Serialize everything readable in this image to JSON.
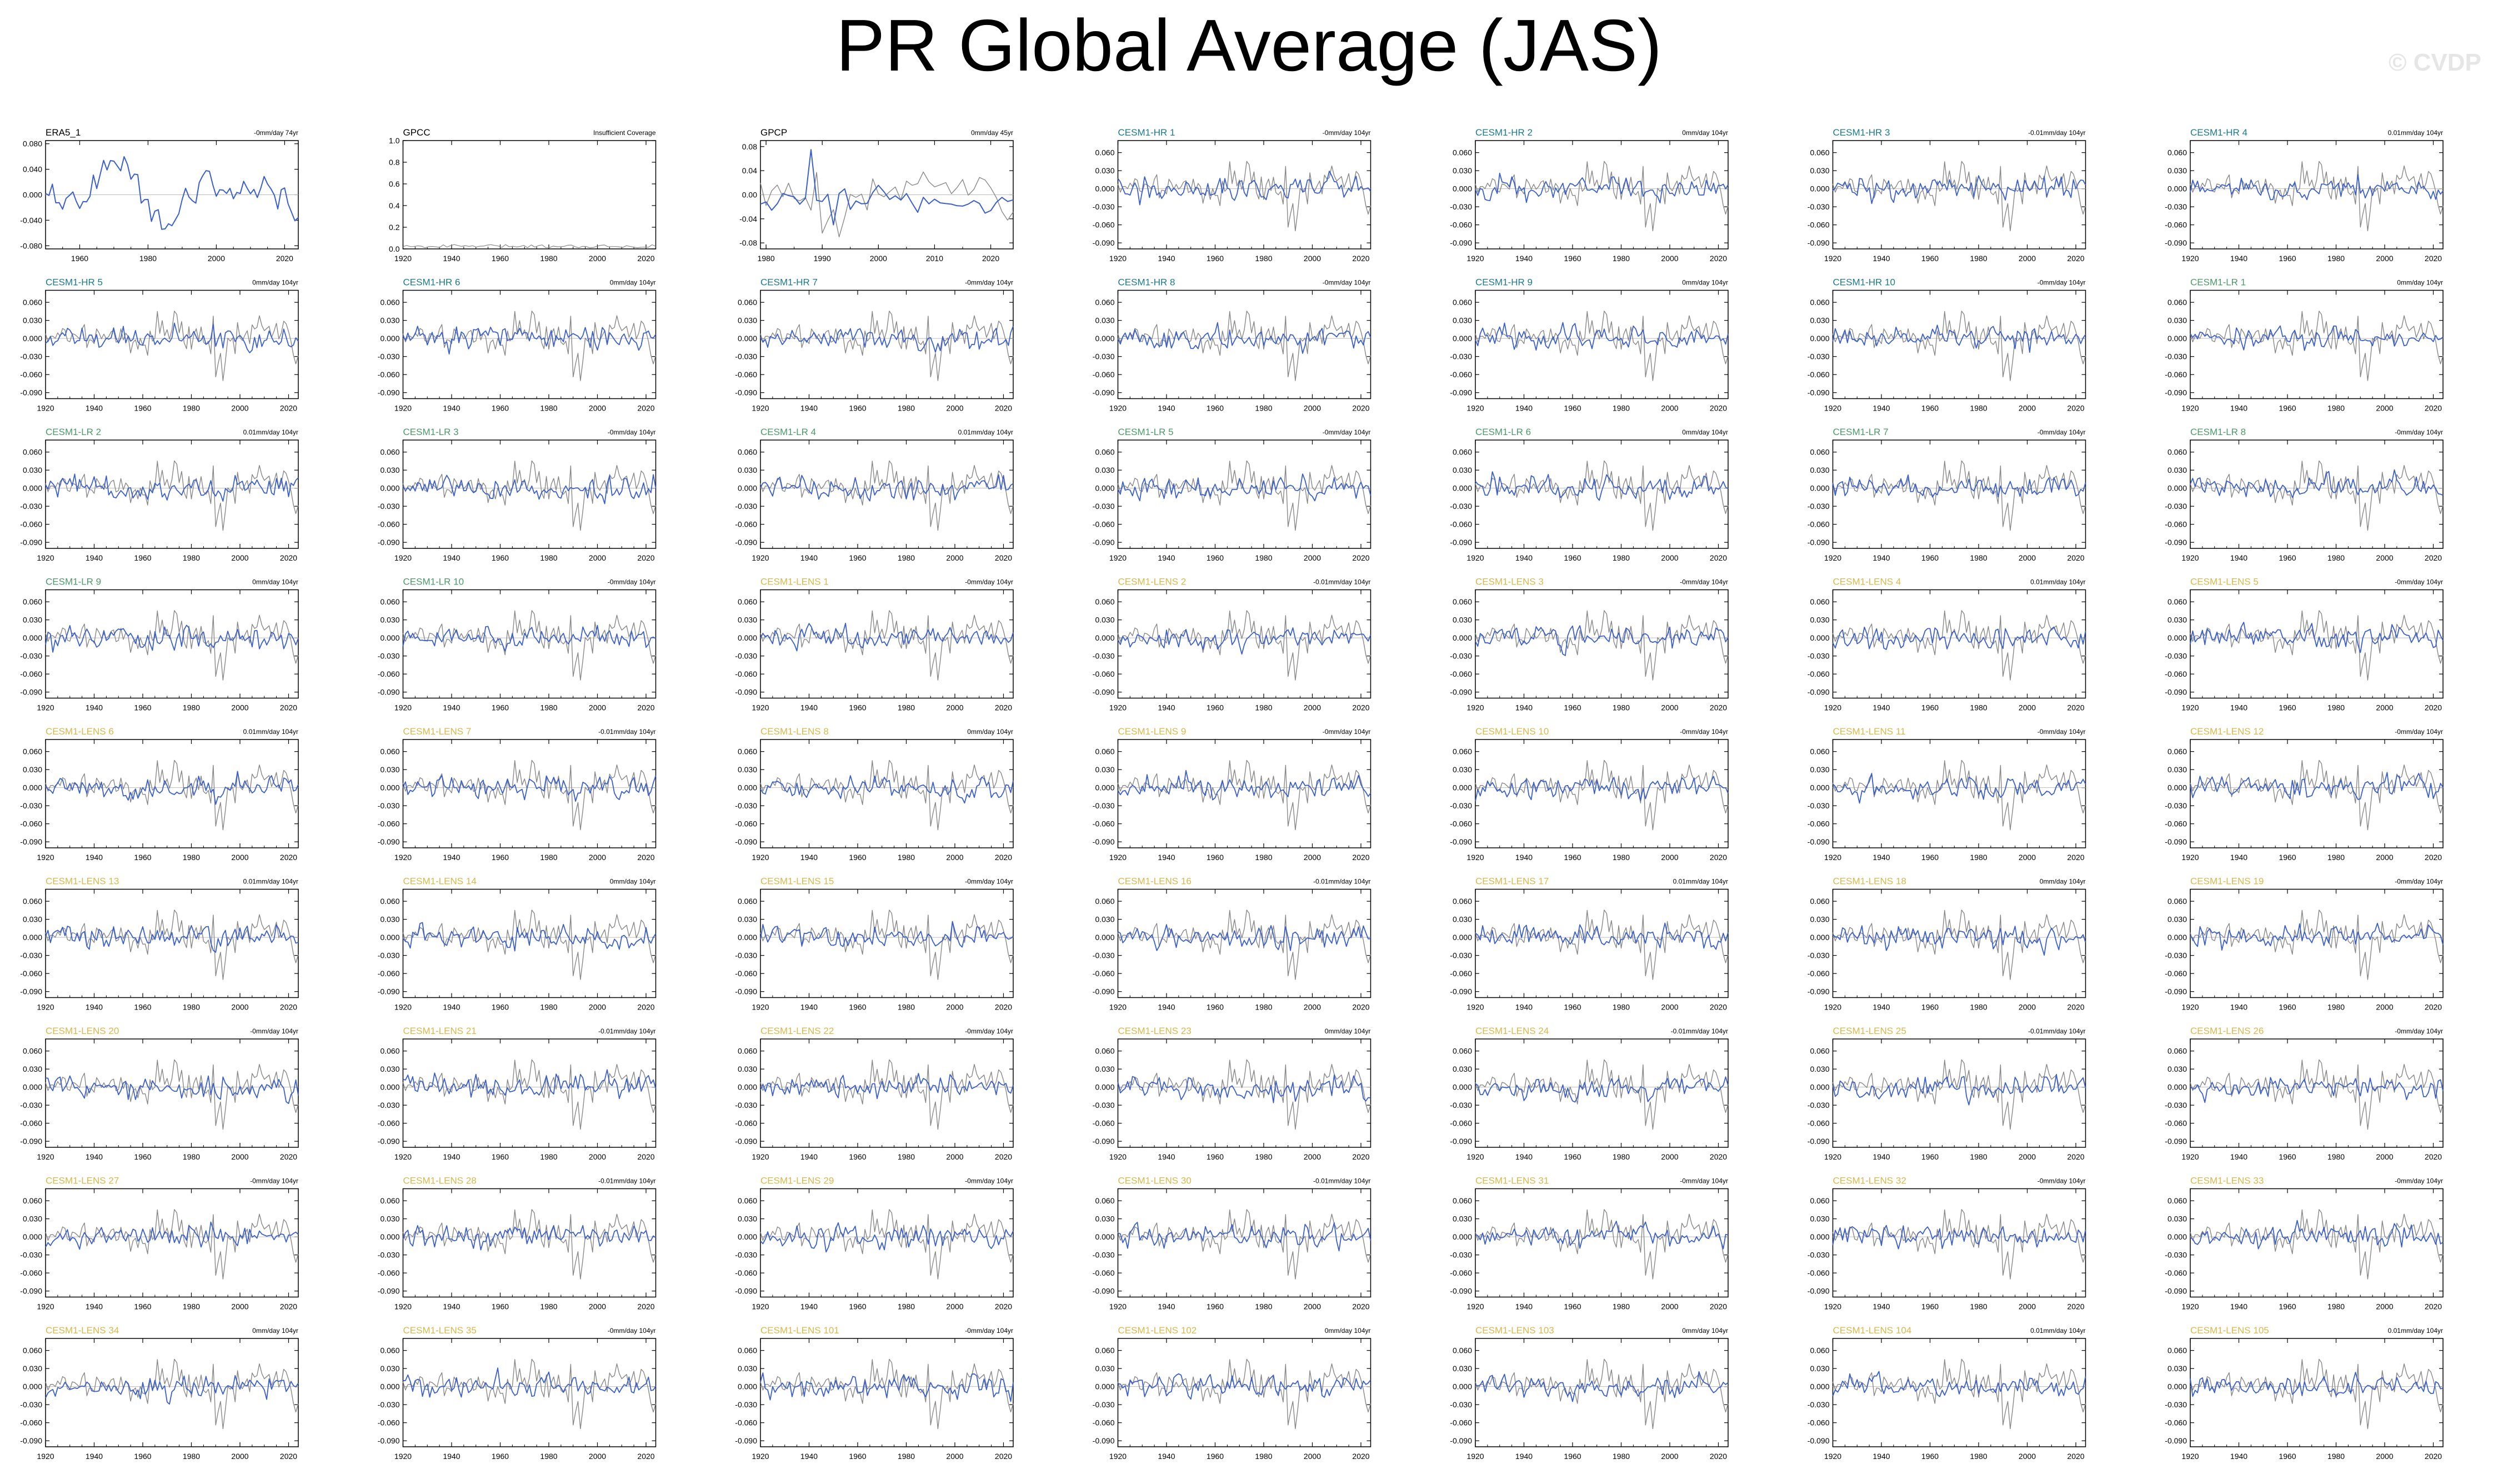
{
  "title": "PR Global Average (JAS)",
  "watermark": "© CVDP",
  "colors": {
    "observation_label": "#000000",
    "cesm1_hr_label": "#1a7a8c",
    "cesm1_lr_label": "#4a9a6a",
    "cesm1_lens_label": "#d9b84a",
    "model_series": "#3a5fcd",
    "reference_series": "#888888",
    "axis": "#000000"
  },
  "std_axis": {
    "yticks": [
      "0.060",
      "0.030",
      "0.000",
      "-0.030",
      "-0.060",
      "-0.090"
    ],
    "ylim": [
      -0.1,
      0.08
    ],
    "xticks": [
      "1920",
      "1940",
      "1960",
      "1980",
      "2000",
      "2020"
    ],
    "xlim": [
      1920,
      2024
    ]
  },
  "chart_data": [
    {
      "type": "line",
      "name": "ERA5_1",
      "trend": "-0mm/day 74yr",
      "group": "obs",
      "xlim": [
        1950,
        2024
      ],
      "ylim": [
        -0.085,
        0.085
      ],
      "yticks": [
        "0.080",
        "0.040",
        "0.000",
        "-0.040",
        "-0.080"
      ],
      "xticks": [
        "1960",
        "1980",
        "2000",
        "2020"
      ]
    },
    {
      "type": "line",
      "name": "GPCC",
      "trend": "Insufficient Coverage",
      "group": "obs",
      "gpcc": true,
      "xlim": [
        1920,
        2024
      ],
      "ylim": [
        0,
        1.0
      ],
      "yticks": [
        "1.0",
        "0.8",
        "0.6",
        "0.4",
        "0.2",
        "0.0"
      ],
      "xticks": [
        "1920",
        "1940",
        "1960",
        "1980",
        "2000",
        "2020"
      ]
    },
    {
      "type": "line",
      "name": "GPCP",
      "trend": "0mm/day 45yr",
      "group": "obs",
      "xlim": [
        1979,
        2024
      ],
      "ylim": [
        -0.09,
        0.09
      ],
      "yticks": [
        "0.08",
        "0.04",
        "0.00",
        "-0.04",
        "-0.08"
      ],
      "xticks": [
        "1980",
        "1990",
        "2000",
        "2010",
        "2020"
      ]
    },
    {
      "name": "CESM1-HR 1",
      "trend": "-0mm/day 104yr",
      "group": "hr"
    },
    {
      "name": "CESM1-HR 2",
      "trend": "0mm/day 104yr",
      "group": "hr"
    },
    {
      "name": "CESM1-HR 3",
      "trend": "-0.01mm/day 104yr",
      "group": "hr"
    },
    {
      "name": "CESM1-HR 4",
      "trend": "0.01mm/day 104yr",
      "group": "hr"
    },
    {
      "name": "CESM1-HR 5",
      "trend": "0mm/day 104yr",
      "group": "hr"
    },
    {
      "name": "CESM1-HR 6",
      "trend": "0mm/day 104yr",
      "group": "hr"
    },
    {
      "name": "CESM1-HR 7",
      "trend": "-0mm/day 104yr",
      "group": "hr"
    },
    {
      "name": "CESM1-HR 8",
      "trend": "-0mm/day 104yr",
      "group": "hr"
    },
    {
      "name": "CESM1-HR 9",
      "trend": "0mm/day 104yr",
      "group": "hr"
    },
    {
      "name": "CESM1-HR 10",
      "trend": "-0mm/day 104yr",
      "group": "hr"
    },
    {
      "name": "CESM1-LR 1",
      "trend": "0mm/day 104yr",
      "group": "lr"
    },
    {
      "name": "CESM1-LR 2",
      "trend": "0.01mm/day 104yr",
      "group": "lr"
    },
    {
      "name": "CESM1-LR 3",
      "trend": "-0mm/day 104yr",
      "group": "lr"
    },
    {
      "name": "CESM1-LR 4",
      "trend": "0.01mm/day 104yr",
      "group": "lr"
    },
    {
      "name": "CESM1-LR 5",
      "trend": "-0mm/day 104yr",
      "group": "lr"
    },
    {
      "name": "CESM1-LR 6",
      "trend": "0mm/day 104yr",
      "group": "lr"
    },
    {
      "name": "CESM1-LR 7",
      "trend": "-0mm/day 104yr",
      "group": "lr"
    },
    {
      "name": "CESM1-LR 8",
      "trend": "-0mm/day 104yr",
      "group": "lr"
    },
    {
      "name": "CESM1-LR 9",
      "trend": "0mm/day 104yr",
      "group": "lr"
    },
    {
      "name": "CESM1-LR 10",
      "trend": "-0mm/day 104yr",
      "group": "lr"
    },
    {
      "name": "CESM1-LENS 1",
      "trend": "-0mm/day 104yr",
      "group": "lens"
    },
    {
      "name": "CESM1-LENS 2",
      "trend": "-0.01mm/day 104yr",
      "group": "lens"
    },
    {
      "name": "CESM1-LENS 3",
      "trend": "-0mm/day 104yr",
      "group": "lens"
    },
    {
      "name": "CESM1-LENS 4",
      "trend": "0.01mm/day 104yr",
      "group": "lens"
    },
    {
      "name": "CESM1-LENS 5",
      "trend": "-0mm/day 104yr",
      "group": "lens"
    },
    {
      "name": "CESM1-LENS 6",
      "trend": "0.01mm/day 104yr",
      "group": "lens"
    },
    {
      "name": "CESM1-LENS 7",
      "trend": "-0.01mm/day 104yr",
      "group": "lens"
    },
    {
      "name": "CESM1-LENS 8",
      "trend": "0mm/day 104yr",
      "group": "lens"
    },
    {
      "name": "CESM1-LENS 9",
      "trend": "-0mm/day 104yr",
      "group": "lens"
    },
    {
      "name": "CESM1-LENS 10",
      "trend": "-0mm/day 104yr",
      "group": "lens"
    },
    {
      "name": "CESM1-LENS 11",
      "trend": "-0mm/day 104yr",
      "group": "lens"
    },
    {
      "name": "CESM1-LENS 12",
      "trend": "-0mm/day 104yr",
      "group": "lens"
    },
    {
      "name": "CESM1-LENS 13",
      "trend": "0.01mm/day 104yr",
      "group": "lens"
    },
    {
      "name": "CESM1-LENS 14",
      "trend": "0mm/day 104yr",
      "group": "lens"
    },
    {
      "name": "CESM1-LENS 15",
      "trend": "-0mm/day 104yr",
      "group": "lens"
    },
    {
      "name": "CESM1-LENS 16",
      "trend": "-0.01mm/day 104yr",
      "group": "lens"
    },
    {
      "name": "CESM1-LENS 17",
      "trend": "0.01mm/day 104yr",
      "group": "lens"
    },
    {
      "name": "CESM1-LENS 18",
      "trend": "0mm/day 104yr",
      "group": "lens"
    },
    {
      "name": "CESM1-LENS 19",
      "trend": "-0mm/day 104yr",
      "group": "lens"
    },
    {
      "name": "CESM1-LENS 20",
      "trend": "-0mm/day 104yr",
      "group": "lens"
    },
    {
      "name": "CESM1-LENS 21",
      "trend": "-0.01mm/day 104yr",
      "group": "lens"
    },
    {
      "name": "CESM1-LENS 22",
      "trend": "-0mm/day 104yr",
      "group": "lens"
    },
    {
      "name": "CESM1-LENS 23",
      "trend": "0mm/day 104yr",
      "group": "lens"
    },
    {
      "name": "CESM1-LENS 24",
      "trend": "-0.01mm/day 104yr",
      "group": "lens"
    },
    {
      "name": "CESM1-LENS 25",
      "trend": "-0.01mm/day 104yr",
      "group": "lens"
    },
    {
      "name": "CESM1-LENS 26",
      "trend": "-0mm/day 104yr",
      "group": "lens"
    },
    {
      "name": "CESM1-LENS 27",
      "trend": "-0mm/day 104yr",
      "group": "lens"
    },
    {
      "name": "CESM1-LENS 28",
      "trend": "-0.01mm/day 104yr",
      "group": "lens"
    },
    {
      "name": "CESM1-LENS 29",
      "trend": "-0mm/day 104yr",
      "group": "lens"
    },
    {
      "name": "CESM1-LENS 30",
      "trend": "-0.01mm/day 104yr",
      "group": "lens"
    },
    {
      "name": "CESM1-LENS 31",
      "trend": "-0mm/day 104yr",
      "group": "lens"
    },
    {
      "name": "CESM1-LENS 32",
      "trend": "-0mm/day 104yr",
      "group": "lens"
    },
    {
      "name": "CESM1-LENS 33",
      "trend": "-0mm/day 104yr",
      "group": "lens"
    },
    {
      "name": "CESM1-LENS 34",
      "trend": "0mm/day 104yr",
      "group": "lens"
    },
    {
      "name": "CESM1-LENS 35",
      "trend": "-0mm/day 104yr",
      "group": "lens"
    },
    {
      "name": "CESM1-LENS 101",
      "trend": "-0mm/day 104yr",
      "group": "lens"
    },
    {
      "name": "CESM1-LENS 102",
      "trend": "0mm/day 104yr",
      "group": "lens"
    },
    {
      "name": "CESM1-LENS 103",
      "trend": "0mm/day 104yr",
      "group": "lens"
    },
    {
      "name": "CESM1-LENS 104",
      "trend": "0.01mm/day 104yr",
      "group": "lens"
    },
    {
      "name": "CESM1-LENS 105",
      "trend": "0.01mm/day 104yr",
      "group": "lens"
    }
  ]
}
